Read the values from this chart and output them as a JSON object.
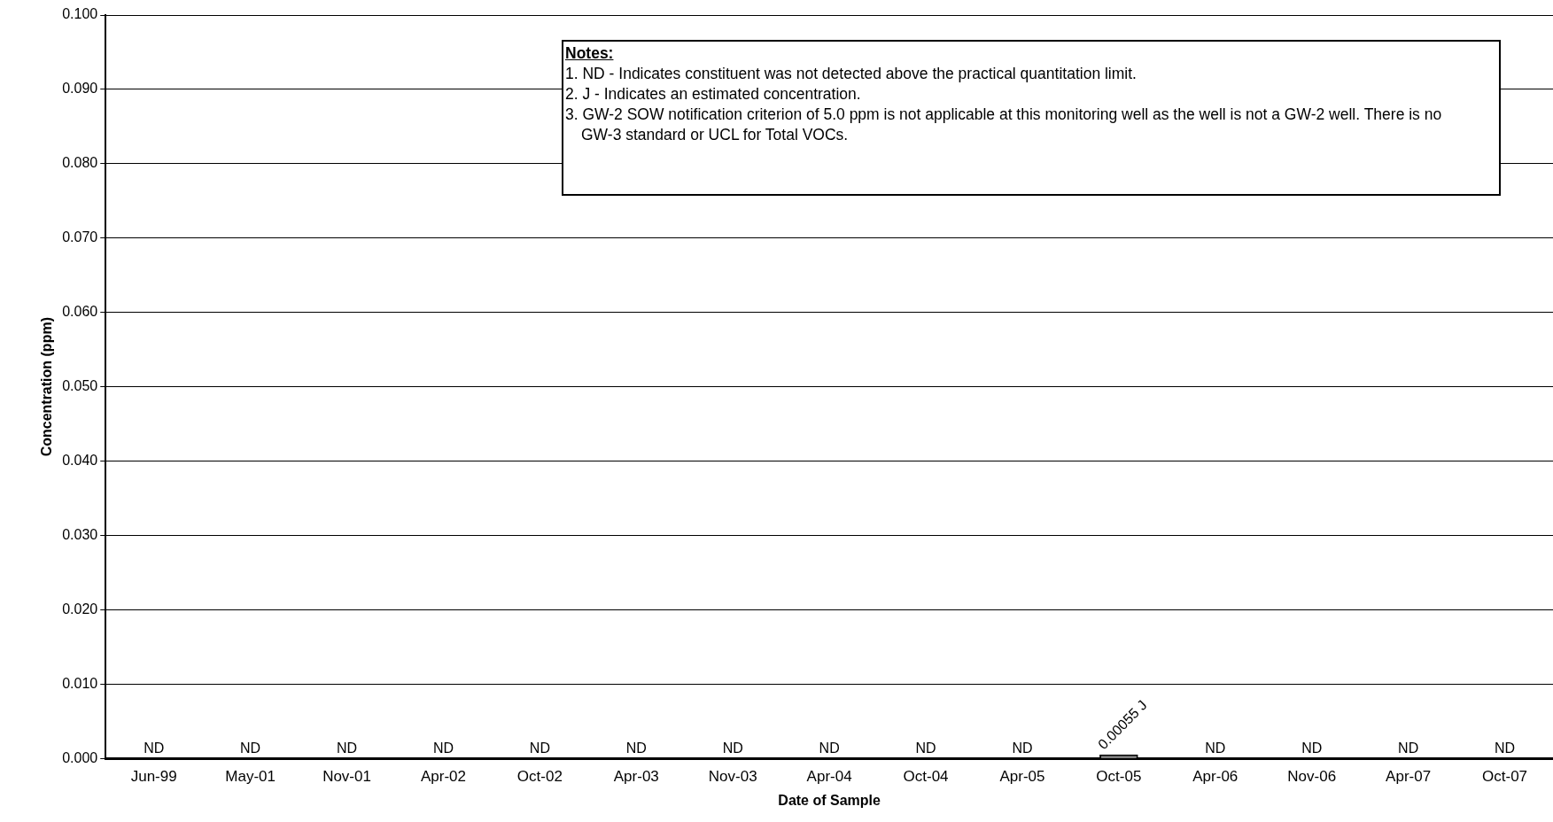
{
  "chart_data": {
    "type": "bar",
    "xlabel": "Date of Sample",
    "ylabel": "Concentration (ppm)",
    "categories": [
      "Jun-99",
      "May-01",
      "Nov-01",
      "Apr-02",
      "Oct-02",
      "Apr-03",
      "Nov-03",
      "Apr-04",
      "Oct-04",
      "Apr-05",
      "Oct-05",
      "Apr-06",
      "Nov-06",
      "Apr-07",
      "Oct-07"
    ],
    "values": [
      null,
      null,
      null,
      null,
      null,
      null,
      null,
      null,
      null,
      null,
      0.00055,
      null,
      null,
      null,
      null
    ],
    "value_labels": [
      "ND",
      "ND",
      "ND",
      "ND",
      "ND",
      "ND",
      "ND",
      "ND",
      "ND",
      "ND",
      "0.00055 J",
      "ND",
      "ND",
      "ND",
      "ND"
    ],
    "color": "#808080",
    "ylim": [
      0,
      0.1
    ],
    "yticks": [
      {
        "value": 0,
        "label": "0.000"
      },
      {
        "value": 0.01,
        "label": "0.010"
      },
      {
        "value": 0.02,
        "label": "0.020"
      },
      {
        "value": 0.03,
        "label": "0.030"
      },
      {
        "value": 0.04,
        "label": "0.040"
      },
      {
        "value": 0.05,
        "label": "0.050"
      },
      {
        "value": 0.06,
        "label": "0.060"
      },
      {
        "value": 0.07,
        "label": "0.070"
      },
      {
        "value": 0.08,
        "label": "0.080"
      },
      {
        "value": 0.09,
        "label": "0.090"
      },
      {
        "value": 0.1,
        "label": "0.100"
      }
    ],
    "grid": "y",
    "legend": false,
    "annotations": [
      "Notes:",
      "1. ND - Indicates constituent was not detected above the practical quantitation limit.",
      "2. J - Indicates an estimated concentration.",
      "3. GW-2 SOW notification criterion of 5.0 ppm is not applicable at this monitoring well as the well is not a GW-2 well.  There is no GW-3 standard or UCL for Total VOCs."
    ]
  }
}
